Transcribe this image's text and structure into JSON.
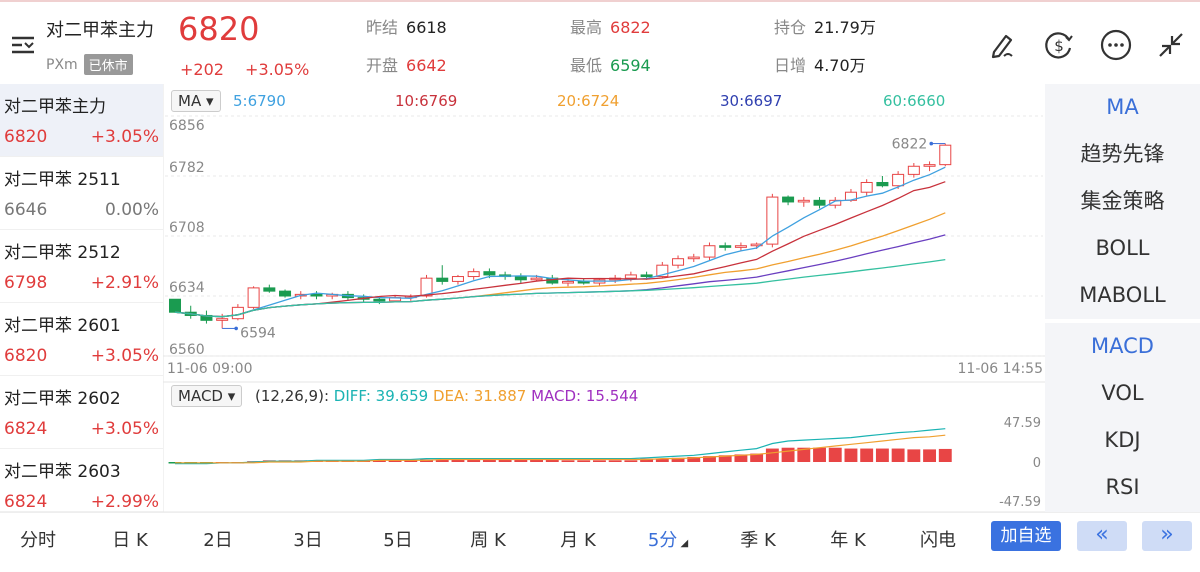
{
  "header": {
    "title": "对二甲苯主力",
    "exchange": "PXm",
    "status": "已休市",
    "price": "6820",
    "change": "+202",
    "change_pct": "+3.05%",
    "stats": {
      "prev_close_label": "昨结",
      "prev_close": "6618",
      "open_label": "开盘",
      "open": "6642",
      "high_label": "最高",
      "high": "6822",
      "low_label": "最低",
      "low": "6594",
      "oi_label": "持仓",
      "oi": "21.79万",
      "oi_change_label": "日增",
      "oi_change": "4.70万"
    },
    "icons": [
      "menu-icon",
      "draw-icon",
      "currency-icon",
      "more-icon",
      "collapse-icon"
    ]
  },
  "sidebar": {
    "contracts": [
      {
        "name": "对二甲苯主力",
        "price": "6820",
        "pct": "+3.05%",
        "trend": "up"
      },
      {
        "name": "对二甲苯 2511",
        "price": "6646",
        "pct": "0.00%",
        "trend": "flat"
      },
      {
        "name": "对二甲苯 2512",
        "price": "6798",
        "pct": "+2.91%",
        "trend": "up"
      },
      {
        "name": "对二甲苯 2601",
        "price": "6820",
        "pct": "+3.05%",
        "trend": "up"
      },
      {
        "name": "对二甲苯 2602",
        "price": "6824",
        "pct": "+3.05%",
        "trend": "up"
      },
      {
        "name": "对二甲苯 2603",
        "price": "6824",
        "pct": "+2.99%",
        "trend": "up"
      }
    ]
  },
  "main_chart": {
    "indicator": "MA",
    "ma5": "5:6790",
    "ma10": "10:6769",
    "ma20": "20:6724",
    "ma30": "30:6697",
    "ma60": "60:6660",
    "y_labels": [
      "6856",
      "6782",
      "6708",
      "6634",
      "6560"
    ],
    "high_mark": "6822",
    "low_mark": "6594",
    "time_start": "11-06 09:00",
    "time_end": "11-06 14:55",
    "colors": {
      "up": "#e84545",
      "down": "#1a9b50",
      "ma5": "#3fa1e0",
      "ma10": "#c8323c",
      "ma20": "#f0a030",
      "ma30": "#6a3fc0",
      "ma60": "#35c0a0"
    }
  },
  "macd_chart": {
    "indicator": "MACD",
    "params": "(12,26,9):",
    "diff": "DIFF: 39.659",
    "dea": "DEA: 31.887",
    "macd": "MACD: 15.544",
    "y_top": "47.59",
    "y_mid": "0",
    "y_bottom": "-47.59"
  },
  "chart_data": {
    "type": "candlestick",
    "title": "",
    "ylim": [
      6560,
      6856
    ],
    "ohlc": [
      [
        6630,
        6630,
        6614,
        6614
      ],
      [
        6614,
        6622,
        6606,
        6610
      ],
      [
        6610,
        6616,
        6600,
        6604
      ],
      [
        6604,
        6612,
        6594,
        6606
      ],
      [
        6606,
        6624,
        6604,
        6620
      ],
      [
        6620,
        6646,
        6618,
        6644
      ],
      [
        6644,
        6648,
        6638,
        6640
      ],
      [
        6640,
        6642,
        6632,
        6634
      ],
      [
        6634,
        6640,
        6630,
        6636
      ],
      [
        6636,
        6640,
        6630,
        6634
      ],
      [
        6634,
        6638,
        6630,
        6636
      ],
      [
        6636,
        6640,
        6628,
        6632
      ],
      [
        6632,
        6636,
        6626,
        6630
      ],
      [
        6630,
        6634,
        6624,
        6628
      ],
      [
        6628,
        6634,
        6626,
        6632
      ],
      [
        6632,
        6636,
        6628,
        6634
      ],
      [
        6634,
        6660,
        6632,
        6656
      ],
      [
        6656,
        6672,
        6648,
        6652
      ],
      [
        6652,
        6660,
        6648,
        6658
      ],
      [
        6658,
        6668,
        6654,
        6664
      ],
      [
        6664,
        6668,
        6656,
        6660
      ],
      [
        6660,
        6664,
        6654,
        6658
      ],
      [
        6658,
        6662,
        6650,
        6654
      ],
      [
        6654,
        6660,
        6652,
        6656
      ],
      [
        6656,
        6660,
        6648,
        6650
      ],
      [
        6650,
        6656,
        6646,
        6652
      ],
      [
        6652,
        6656,
        6648,
        6650
      ],
      [
        6650,
        6656,
        6646,
        6654
      ],
      [
        6654,
        6660,
        6650,
        6656
      ],
      [
        6656,
        6664,
        6652,
        6660
      ],
      [
        6660,
        6664,
        6654,
        6658
      ],
      [
        6658,
        6676,
        6656,
        6672
      ],
      [
        6672,
        6684,
        6668,
        6680
      ],
      [
        6680,
        6686,
        6676,
        6682
      ],
      [
        6682,
        6700,
        6678,
        6696
      ],
      [
        6696,
        6700,
        6690,
        6694
      ],
      [
        6694,
        6700,
        6690,
        6696
      ],
      [
        6696,
        6700,
        6692,
        6698
      ],
      [
        6698,
        6760,
        6694,
        6756
      ],
      [
        6756,
        6758,
        6746,
        6750
      ],
      [
        6750,
        6756,
        6744,
        6752
      ],
      [
        6752,
        6756,
        6742,
        6746
      ],
      [
        6746,
        6756,
        6742,
        6752
      ],
      [
        6752,
        6766,
        6750,
        6762
      ],
      [
        6762,
        6778,
        6758,
        6774
      ],
      [
        6774,
        6782,
        6768,
        6770
      ],
      [
        6770,
        6788,
        6766,
        6784
      ],
      [
        6784,
        6798,
        6780,
        6794
      ],
      [
        6794,
        6800,
        6788,
        6796
      ],
      [
        6796,
        6822,
        6794,
        6820
      ]
    ],
    "macd": {
      "diff": [
        -2,
        -2,
        -2,
        -1,
        -1,
        0,
        1,
        1,
        1,
        2,
        2,
        2,
        2,
        3,
        3,
        3,
        4,
        4,
        4,
        4,
        4,
        4,
        4,
        4,
        4,
        4,
        4,
        4,
        4,
        4,
        5,
        6,
        7,
        8,
        10,
        12,
        14,
        16,
        22,
        25,
        26,
        27,
        28,
        29,
        31,
        33,
        35,
        36,
        38,
        39.659
      ],
      "dea": [
        -1,
        -1,
        -1,
        -1,
        -1,
        -1,
        0,
        0,
        0,
        1,
        1,
        1,
        1,
        2,
        2,
        2,
        2,
        3,
        3,
        3,
        3,
        3,
        3,
        3,
        3,
        3,
        3,
        3,
        3,
        3,
        3,
        4,
        4,
        5,
        6,
        7,
        8,
        9,
        11,
        13,
        15,
        17,
        19,
        21,
        23,
        25,
        27,
        29,
        30,
        31.887
      ],
      "hist": [
        -1,
        -1,
        -1,
        0,
        0,
        1,
        2,
        2,
        2,
        2,
        2,
        2,
        2,
        2,
        2,
        2,
        3,
        3,
        3,
        3,
        3,
        3,
        3,
        3,
        3,
        2,
        2,
        2,
        2,
        2,
        4,
        4,
        5,
        6,
        7,
        8,
        9,
        10,
        16,
        17,
        17,
        17,
        17,
        16,
        16,
        16,
        16,
        15,
        15,
        15.544
      ],
      "ylim": [
        -47.59,
        47.59
      ]
    }
  },
  "right_panel": {
    "main_indicators": [
      "MA",
      "趋势先锋",
      "集金策略",
      "BOLL",
      "MABOLL"
    ],
    "sub_indicators": [
      "MACD",
      "VOL",
      "KDJ",
      "RSI"
    ]
  },
  "bottom_bar": {
    "periods": [
      "分时",
      "日 K",
      "2日",
      "3日",
      "5日",
      "周 K",
      "月 K",
      "5分",
      "季 K",
      "年 K",
      "闪电"
    ],
    "active_period": "5分",
    "watch_label": "加自选",
    "prev_label": "«",
    "next_label": "»"
  }
}
